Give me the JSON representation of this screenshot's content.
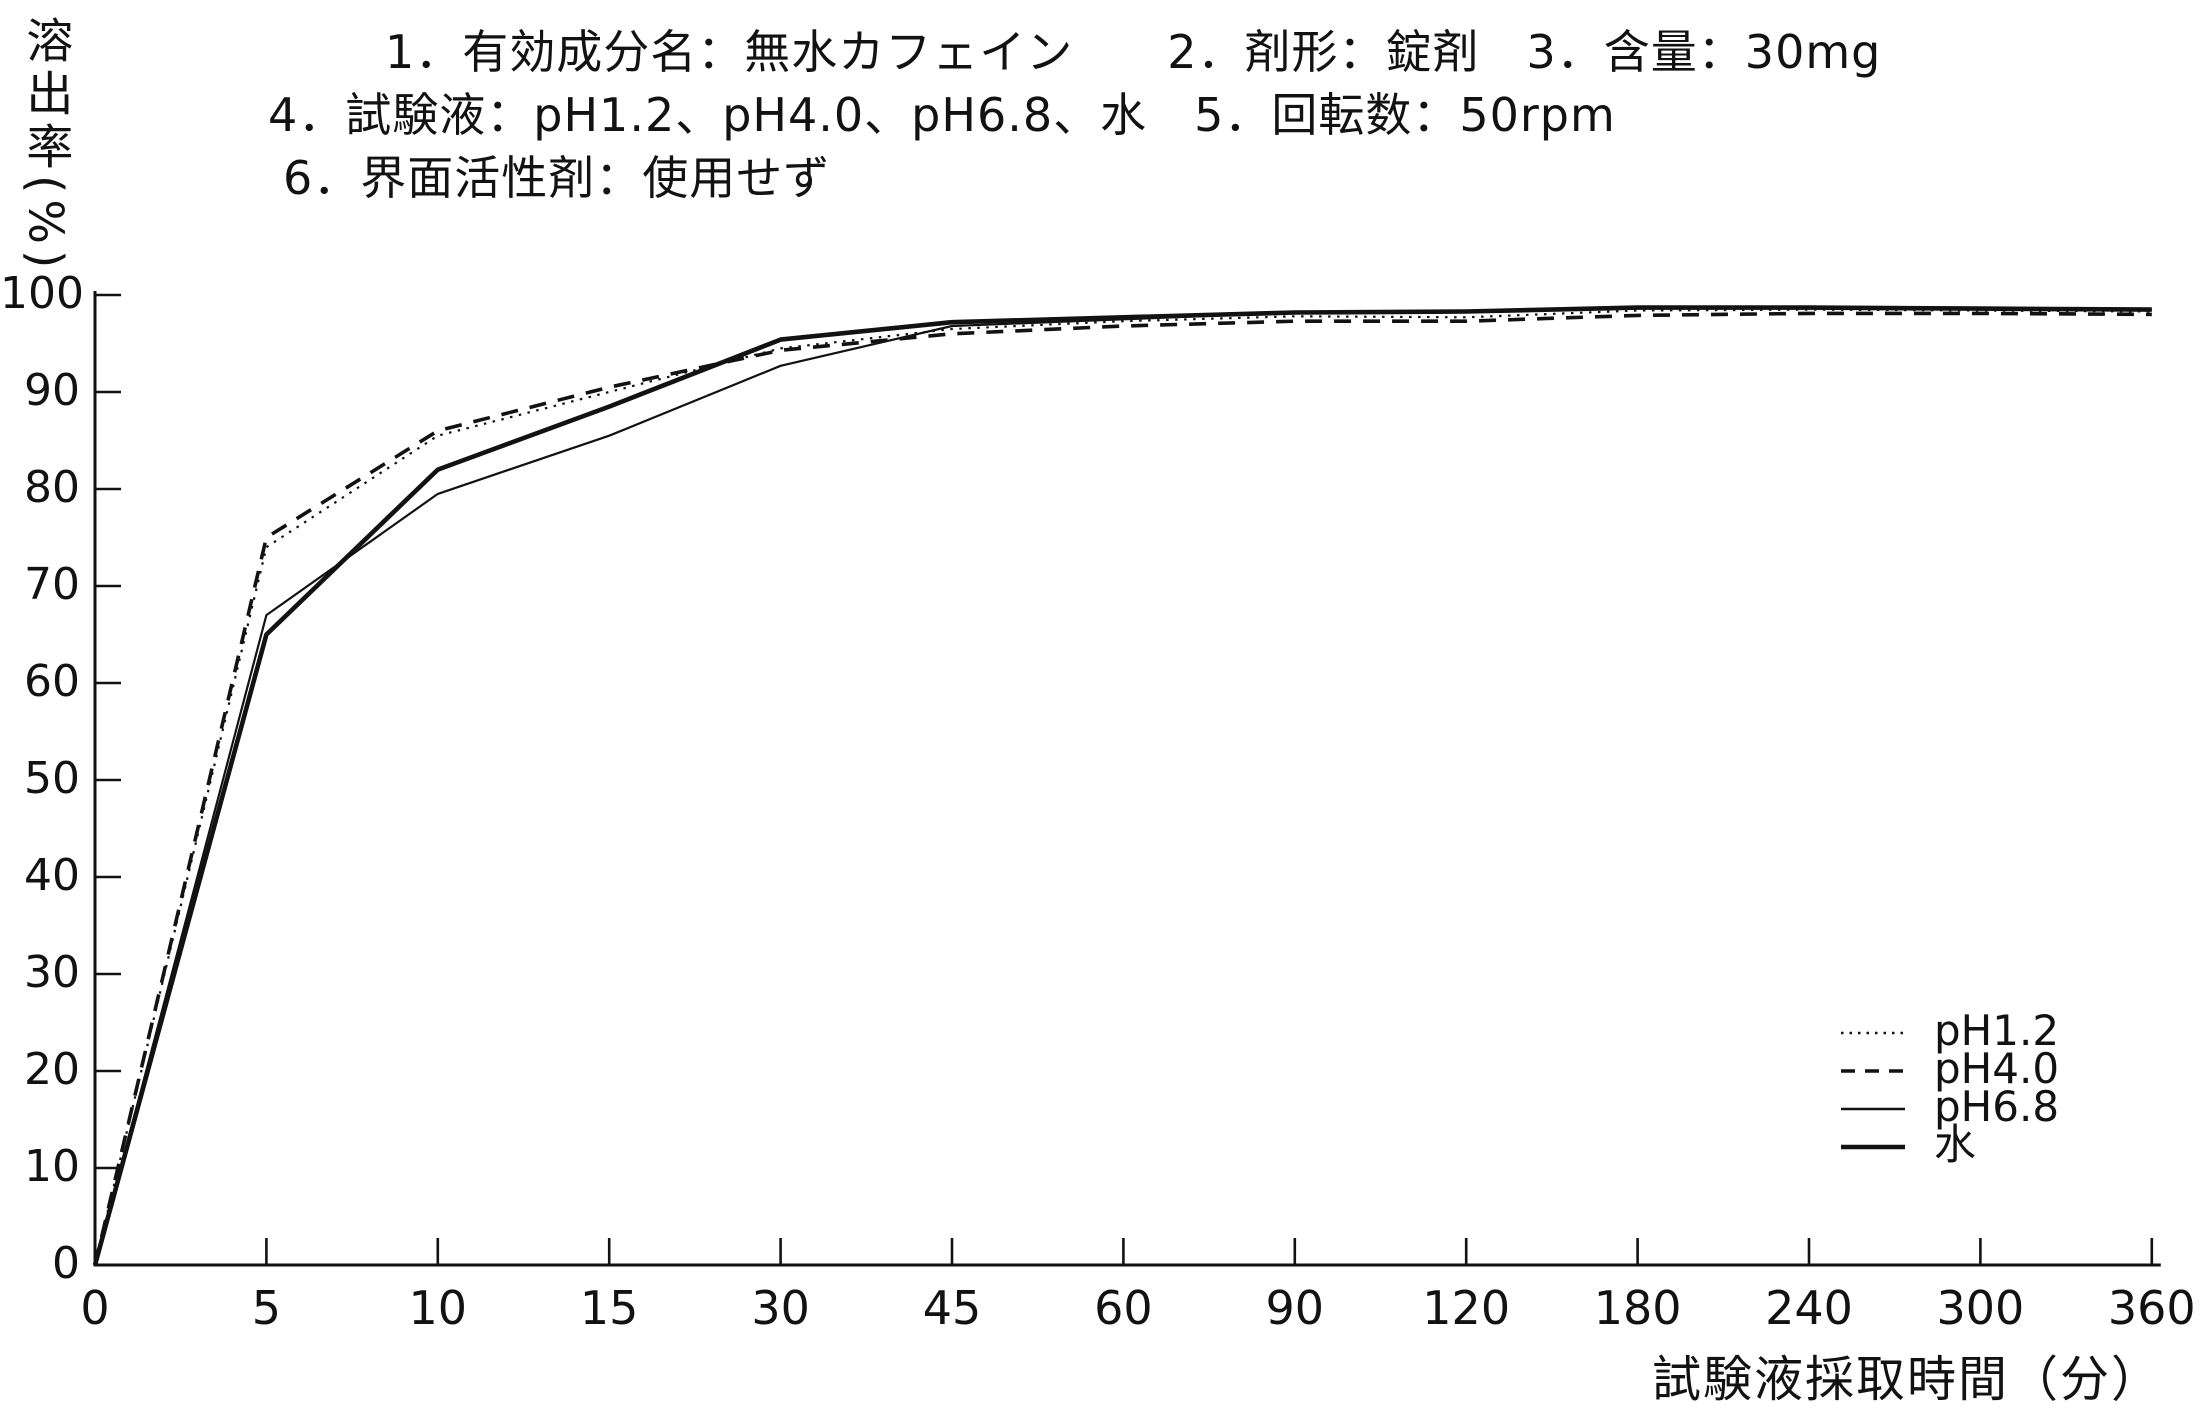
{
  "figure": {
    "background": "#ffffff",
    "ink_color": "#121212"
  },
  "chart_data": {
    "type": "line",
    "annotations": [
      "1．有効成分名：無水カフェイン　　2．剤形：錠剤　3．含量：30mg",
      "4．試験液：pH1.2、pH4.0、pH6.8、水　5．回転数：50rpm",
      "6．界面活性剤：使用せず"
    ],
    "ylabel": "溶出率(%)",
    "xlabel": "試験液採取時間（分）",
    "x_categories": [
      "0",
      "5",
      "10",
      "15",
      "30",
      "45",
      "60",
      "90",
      "120",
      "180",
      "240",
      "300",
      "360"
    ],
    "x_axis_scale": "categorical (equal pixel spacing per tick despite non-linear minutes)",
    "ylim": [
      0,
      100
    ],
    "y_ticks": [
      0,
      10,
      20,
      30,
      40,
      50,
      60,
      70,
      80,
      90,
      100
    ],
    "grid": "off",
    "legend_position": "lower-right",
    "series": [
      {
        "name": "pH1.2",
        "line_style": "dotted",
        "values": [
          0,
          74,
          85.5,
          90,
          94.5,
          96.5,
          97.3,
          97.8,
          97.7,
          98.4,
          98.5,
          98.4,
          98.3
        ]
      },
      {
        "name": "pH4.0",
        "line_style": "dashed",
        "values": [
          0,
          75,
          86,
          90.5,
          94.3,
          96,
          96.8,
          97.3,
          97.3,
          97.9,
          98.1,
          98.1,
          98
        ]
      },
      {
        "name": "pH6.8",
        "line_style": "solid-thin",
        "values": [
          0,
          67,
          79.5,
          85.5,
          92.7,
          96.8,
          97.5,
          98.2,
          98.3,
          98.7,
          98.7,
          98.6,
          98.5
        ]
      },
      {
        "name": "水",
        "line_style": "solid-thick",
        "values": [
          0,
          65,
          82,
          88.5,
          95.4,
          97.2,
          97.7,
          98.2,
          98.3,
          98.7,
          98.7,
          98.6,
          98.5
        ]
      }
    ]
  }
}
